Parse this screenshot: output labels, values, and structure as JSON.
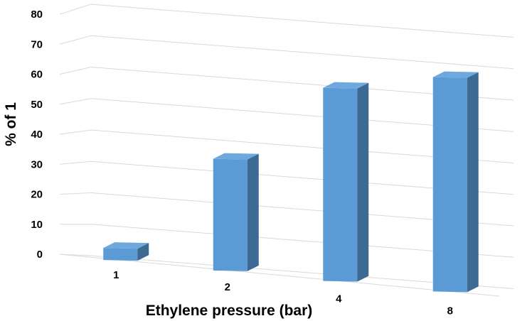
{
  "chart_data": {
    "type": "bar",
    "style": "3d-column",
    "categories": [
      "1",
      "2",
      "4",
      "8"
    ],
    "values": [
      4,
      37,
      64,
      71
    ],
    "xlabel": "Ethylene pressure (bar)",
    "ylabel": "% of 1",
    "ylim": [
      0,
      80
    ],
    "yticks": [
      "0",
      "10",
      "20",
      "30",
      "40",
      "50",
      "60",
      "70",
      "80"
    ],
    "grid": true,
    "legend": "none",
    "colors": {
      "bar_front": "#5b9bd5",
      "bar_top": "#6fa8dc",
      "bar_side": "#3c6a93",
      "grid": "#d9d9d9"
    }
  }
}
